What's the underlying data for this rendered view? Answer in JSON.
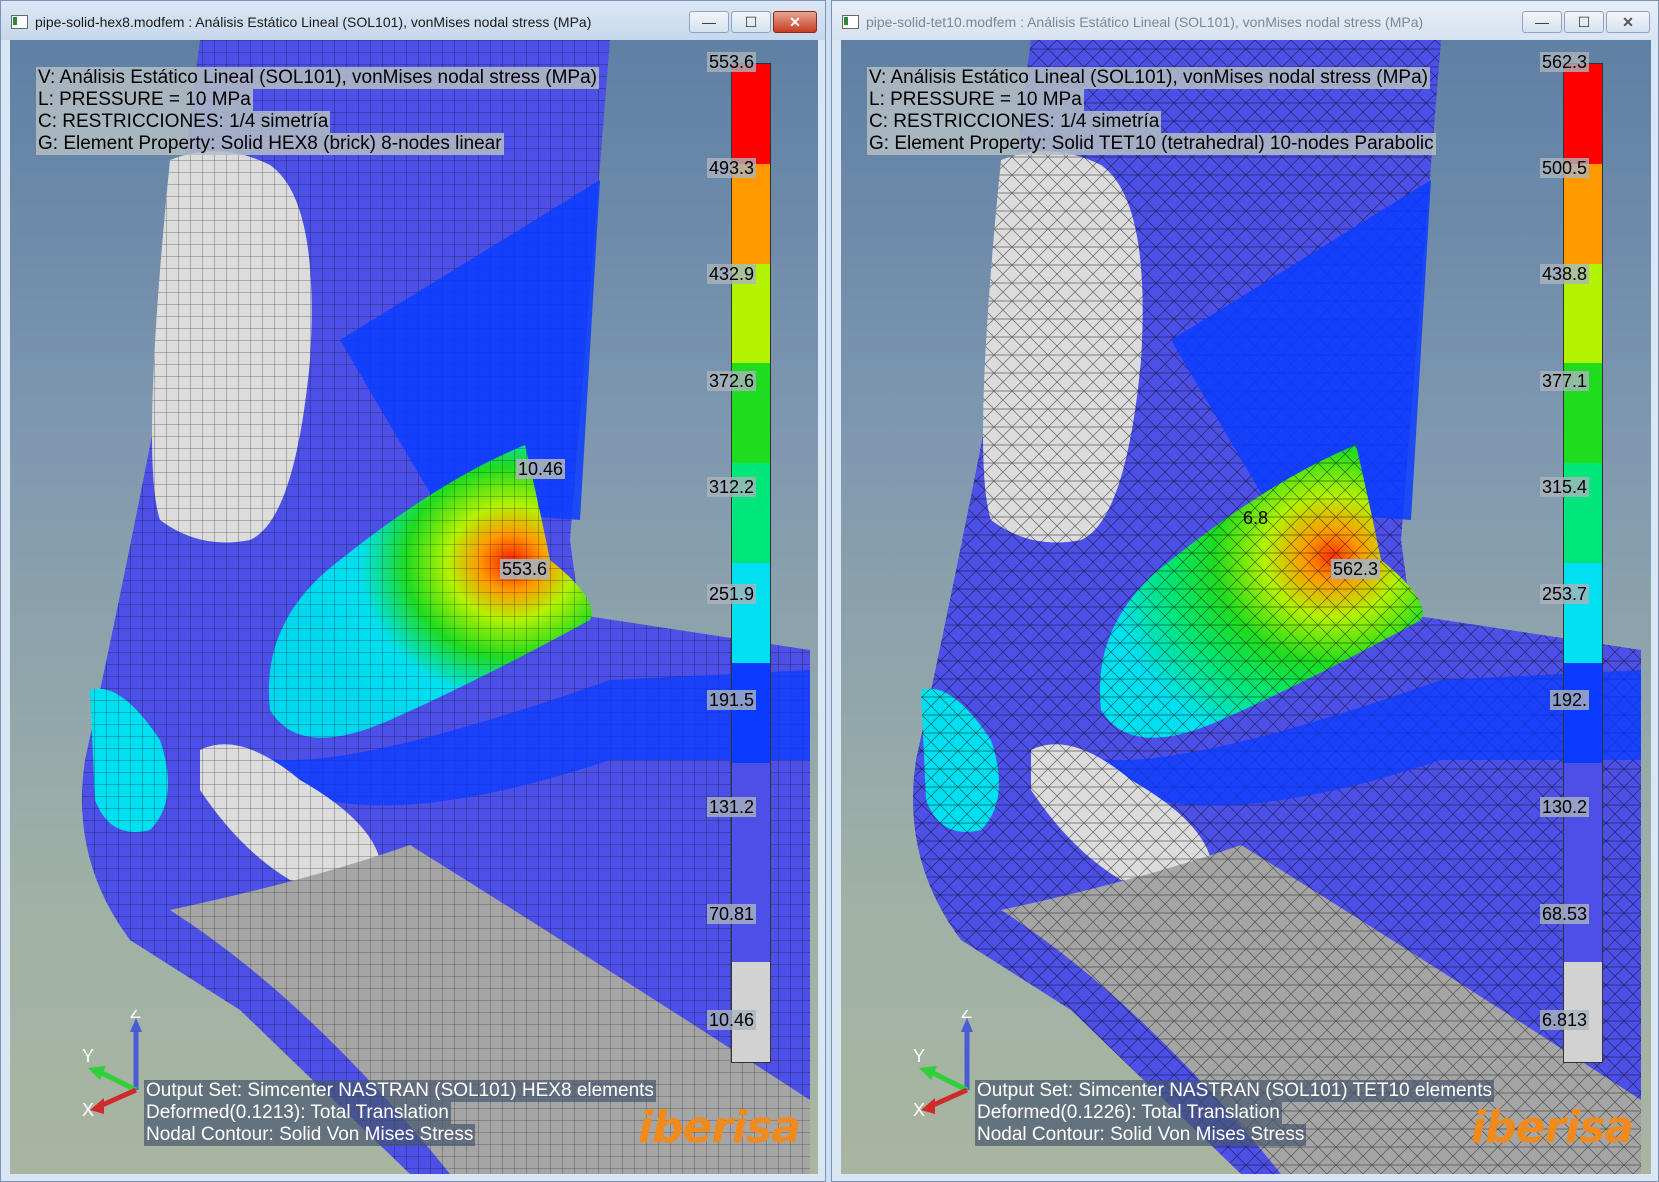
{
  "left": {
    "title": "pipe-solid-hex8.modfem : Análisis Estático Lineal (SOL101), vonMises nodal stress (MPa)",
    "info": [
      "V: Análisis Estático Lineal (SOL101), vonMises nodal stress (MPa)",
      "L: PRESSURE = 10 MPa",
      "C: RESTRICCIONES: 1/4 simetría",
      "G: Element Property: Solid HEX8 (brick) 8-nodes linear"
    ],
    "legend_values": [
      "553.6",
      "493.3",
      "432.9",
      "372.6",
      "312.2",
      "251.9",
      "191.5",
      "131.2",
      "70.81",
      "10.46"
    ],
    "min_label": "10.46",
    "max_label": "553.6",
    "output": [
      "Output Set: Simcenter NASTRAN (SOL101) HEX8 elements",
      "Deformed(0.1213): Total Translation",
      "Nodal Contour: Solid Von Mises Stress"
    ]
  },
  "right": {
    "title": "pipe-solid-tet10.modfem : Análisis Estático Lineal (SOL101), vonMises nodal stress (MPa)",
    "info": [
      "V: Análisis Estático Lineal (SOL101), vonMises nodal stress (MPa)",
      "L: PRESSURE = 10 MPa",
      "C: RESTRICCIONES: 1/4 simetría",
      "G: Element Property: Solid TET10 (tetrahedral) 10-nodes Parabolic"
    ],
    "legend_values": [
      "562.3",
      "500.5",
      "438.8",
      "377.1",
      "315.4",
      "253.7",
      "192.",
      "130.2",
      "68.53",
      "6.813"
    ],
    "min_label": "6.8",
    "max_label": "562.3",
    "output": [
      "Output Set: Simcenter NASTRAN (SOL101) TET10 elements",
      "Deformed(0.1226): Total Translation",
      "Nodal Contour: Solid Von Mises Stress"
    ]
  },
  "legend_colors": [
    "#ff0000",
    "#ff9900",
    "#b3f200",
    "#1fdc1f",
    "#00e67a",
    "#00e0f0",
    "#0a3cff",
    "#4d50e6",
    "#4d50e6",
    "#d2d2d2"
  ],
  "triad_labels": {
    "z": "Z",
    "y": "Y",
    "x": "X"
  },
  "brand": "iberisa",
  "window_buttons": {
    "minimize": "—",
    "maximize": "☐",
    "close": "✕"
  }
}
